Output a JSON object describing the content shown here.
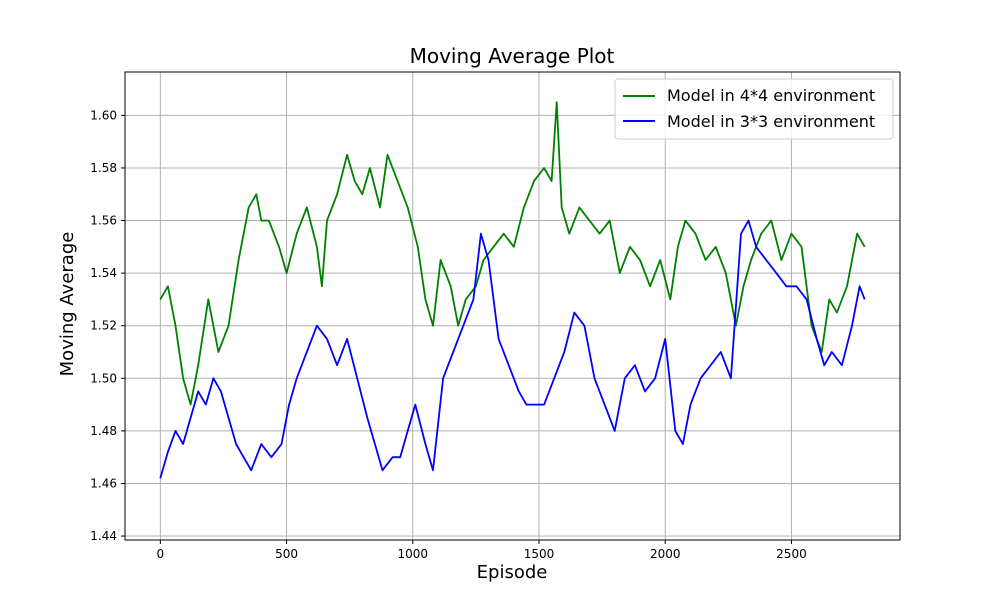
{
  "chart_data": {
    "type": "line",
    "title": "Moving Average Plot",
    "xlabel": "Episode",
    "ylabel": "Moving Average",
    "xlim": [
      -140,
      2930
    ],
    "ylim": [
      1.4385,
      1.6165
    ],
    "x_ticks": [
      0,
      500,
      1000,
      1500,
      2000,
      2500
    ],
    "x_tick_labels": [
      "0",
      "500",
      "1000",
      "1500",
      "2000",
      "2500"
    ],
    "y_ticks": [
      1.44,
      1.46,
      1.48,
      1.5,
      1.52,
      1.54,
      1.56,
      1.58,
      1.6
    ],
    "y_tick_labels": [
      "1.44",
      "1.46",
      "1.48",
      "1.50",
      "1.52",
      "1.54",
      "1.56",
      "1.58",
      "1.60"
    ],
    "grid": true,
    "legend_position": "top-right",
    "series": [
      {
        "name": "Model in 4*4 environment",
        "color": "#008000",
        "x": [
          0,
          30,
          60,
          90,
          120,
          150,
          190,
          230,
          270,
          310,
          350,
          380,
          400,
          430,
          470,
          500,
          540,
          580,
          620,
          640,
          660,
          700,
          740,
          770,
          800,
          830,
          870,
          900,
          940,
          980,
          1020,
          1050,
          1080,
          1110,
          1150,
          1180,
          1210,
          1250,
          1280,
          1320,
          1360,
          1400,
          1440,
          1480,
          1520,
          1550,
          1570,
          1590,
          1620,
          1660,
          1700,
          1740,
          1780,
          1820,
          1860,
          1900,
          1940,
          1980,
          2020,
          2050,
          2080,
          2120,
          2160,
          2200,
          2240,
          2280,
          2310,
          2340,
          2380,
          2420,
          2460,
          2500,
          2540,
          2580,
          2620,
          2650,
          2680,
          2720,
          2760,
          2790
        ],
        "y": [
          1.53,
          1.535,
          1.52,
          1.5,
          1.49,
          1.505,
          1.53,
          1.51,
          1.52,
          1.545,
          1.565,
          1.57,
          1.56,
          1.56,
          1.55,
          1.54,
          1.555,
          1.565,
          1.55,
          1.535,
          1.56,
          1.57,
          1.585,
          1.575,
          1.57,
          1.58,
          1.565,
          1.585,
          1.575,
          1.565,
          1.55,
          1.53,
          1.52,
          1.545,
          1.535,
          1.52,
          1.53,
          1.535,
          1.545,
          1.55,
          1.555,
          1.55,
          1.565,
          1.575,
          1.58,
          1.575,
          1.605,
          1.565,
          1.555,
          1.565,
          1.56,
          1.555,
          1.56,
          1.54,
          1.55,
          1.545,
          1.535,
          1.545,
          1.53,
          1.55,
          1.56,
          1.555,
          1.545,
          1.55,
          1.54,
          1.52,
          1.535,
          1.545,
          1.555,
          1.56,
          1.545,
          1.555,
          1.55,
          1.52,
          1.51,
          1.53,
          1.525,
          1.535,
          1.555,
          1.55
        ]
      },
      {
        "name": "Model in 3*3 environment",
        "color": "#0000ff",
        "x": [
          0,
          30,
          60,
          90,
          120,
          150,
          180,
          210,
          240,
          270,
          300,
          330,
          360,
          400,
          440,
          480,
          510,
          540,
          580,
          620,
          660,
          700,
          740,
          780,
          820,
          850,
          880,
          920,
          950,
          980,
          1010,
          1050,
          1080,
          1120,
          1160,
          1200,
          1240,
          1270,
          1300,
          1340,
          1380,
          1420,
          1450,
          1490,
          1520,
          1560,
          1600,
          1640,
          1680,
          1720,
          1760,
          1800,
          1840,
          1880,
          1920,
          1960,
          2000,
          2040,
          2070,
          2100,
          2140,
          2180,
          2220,
          2260,
          2300,
          2330,
          2360,
          2400,
          2440,
          2480,
          2520,
          2560,
          2600,
          2630,
          2660,
          2700,
          2740,
          2770,
          2790
        ],
        "y": [
          1.462,
          1.472,
          1.48,
          1.475,
          1.485,
          1.495,
          1.49,
          1.5,
          1.495,
          1.485,
          1.475,
          1.47,
          1.465,
          1.475,
          1.47,
          1.475,
          1.49,
          1.5,
          1.51,
          1.52,
          1.515,
          1.505,
          1.515,
          1.5,
          1.485,
          1.475,
          1.465,
          1.47,
          1.47,
          1.48,
          1.49,
          1.475,
          1.465,
          1.5,
          1.51,
          1.52,
          1.53,
          1.555,
          1.545,
          1.515,
          1.505,
          1.495,
          1.49,
          1.49,
          1.49,
          1.5,
          1.51,
          1.525,
          1.52,
          1.5,
          1.49,
          1.48,
          1.5,
          1.505,
          1.495,
          1.5,
          1.515,
          1.48,
          1.475,
          1.49,
          1.5,
          1.505,
          1.51,
          1.5,
          1.555,
          1.56,
          1.55,
          1.545,
          1.54,
          1.535,
          1.535,
          1.53,
          1.515,
          1.505,
          1.51,
          1.505,
          1.52,
          1.535,
          1.53
        ]
      }
    ]
  }
}
